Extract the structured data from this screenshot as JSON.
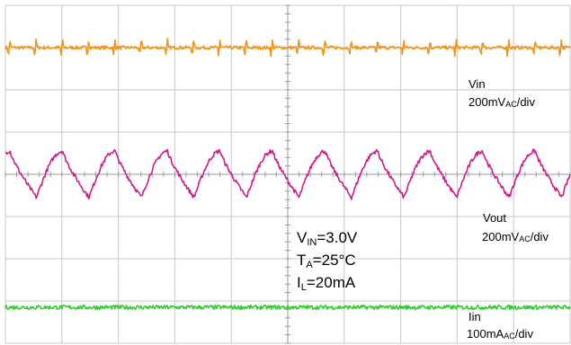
{
  "chart_data": {
    "type": "line",
    "title": "",
    "xlabel": "",
    "ylabel": "",
    "grid": true,
    "divisions": {
      "x": 10,
      "y": 8
    },
    "channels": [
      {
        "name": "Vin",
        "scale_prefix": "200mV",
        "scale_sub": "AC",
        "scale_suffix": "/div",
        "color": "#f29418",
        "center_div": 7.0,
        "shape": "spike",
        "period_div": 0.465,
        "phase_div": 0.3,
        "amplitude_div": 0.18,
        "noise_div": 0.04
      },
      {
        "name": "Vout",
        "scale_prefix": "200mV",
        "scale_sub": "AC",
        "scale_suffix": "/div",
        "color": "#d01c8b",
        "center_div": 4.0,
        "shape": "ripple",
        "period_div": 0.93,
        "phase_div": 0.55,
        "amplitude_div": 0.55,
        "noise_div": 0.05
      },
      {
        "name": "Iin",
        "scale_prefix": "100mA",
        "scale_sub": "AC",
        "scale_suffix": "/div",
        "color": "#33cc33",
        "center_div": 0.85,
        "shape": "flat",
        "period_div": 1.0,
        "phase_div": 0,
        "amplitude_div": 0.02,
        "noise_div": 0.05
      }
    ],
    "conditions": [
      {
        "symbol": "V",
        "sub": "IN",
        "value": "=3.0V"
      },
      {
        "symbol": "T",
        "sub": "A",
        "value": "=25°C"
      },
      {
        "symbol": "I",
        "sub": "L",
        "value": "=20mA"
      }
    ]
  }
}
